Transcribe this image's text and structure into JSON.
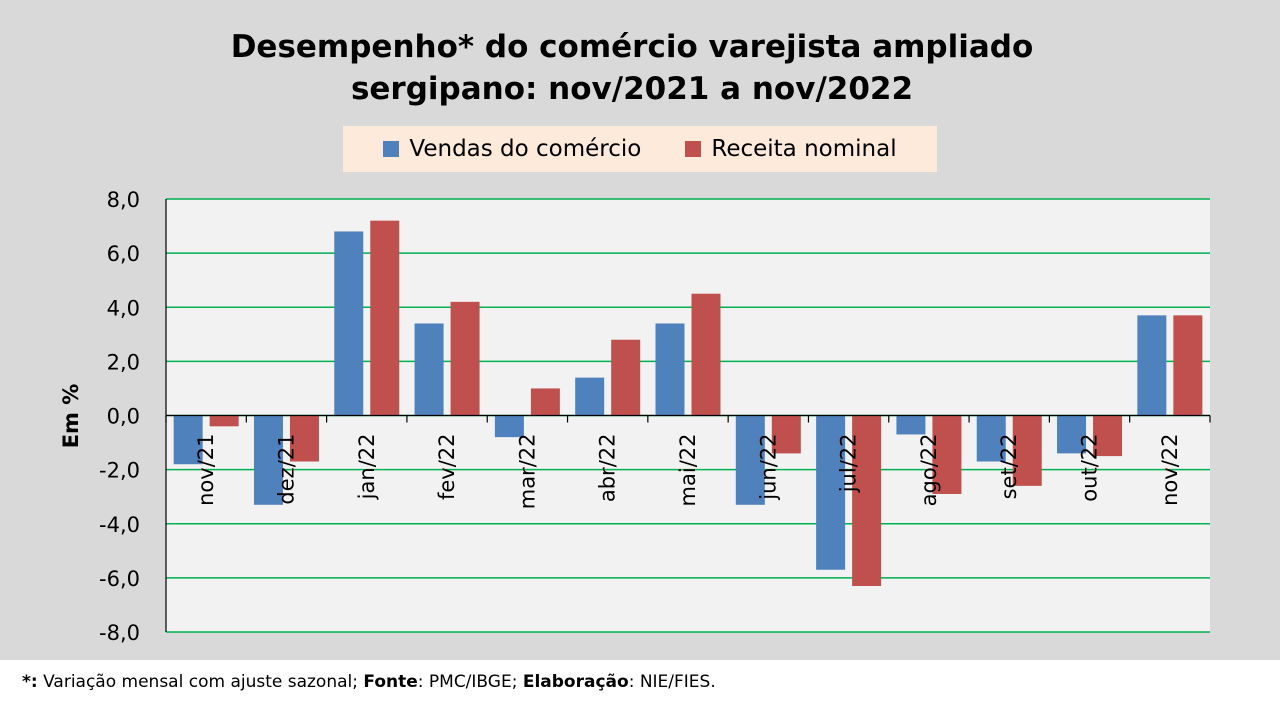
{
  "title": {
    "line1": "Desempenho* do comércio varejista ampliado",
    "line2": "sergipano: nov/2021 a nov/2022"
  },
  "chart_data": {
    "type": "bar",
    "title": "Desempenho* do comércio varejista ampliado sergipano: nov/2021 a nov/2022",
    "xlabel": "",
    "ylabel": "Em %",
    "ylim": [
      -8,
      8
    ],
    "yticks": [
      "8,0",
      "6,0",
      "4,0",
      "2,0",
      "0,0",
      "-2,0",
      "-4,0",
      "-6,0",
      "-8,0"
    ],
    "ytick_values": [
      8,
      6,
      4,
      2,
      0,
      -2,
      -4,
      -6,
      -8
    ],
    "grid": true,
    "legend_position": "top-center",
    "categories": [
      "nov/21",
      "dez/21",
      "jan/22",
      "fev/22",
      "mar/22",
      "abr/22",
      "mai/22",
      "jun/22",
      "jul/22",
      "ago/22",
      "set/22",
      "out/22",
      "nov/22"
    ],
    "series": [
      {
        "name": "Vendas do comércio",
        "color": "#4f81bd",
        "values": [
          -1.8,
          -3.3,
          6.8,
          3.4,
          -0.8,
          1.4,
          3.4,
          -3.3,
          -5.7,
          -0.7,
          -1.7,
          -1.4,
          3.7
        ]
      },
      {
        "name": "Receita nominal",
        "color": "#c0504d",
        "values": [
          -0.4,
          -1.7,
          7.2,
          4.2,
          1.0,
          2.8,
          4.5,
          -1.4,
          -6.3,
          -2.9,
          -2.6,
          -1.5,
          3.7
        ]
      }
    ]
  },
  "colors": {
    "plot_background": "#f2f2f2",
    "gridline": "#00b050",
    "outer_background": "#d9d9d9",
    "legend_background": "#fdeada"
  },
  "footer": {
    "marker": "*:",
    "note": " Variação mensal com ajuste sazonal; ",
    "source_label": "Fonte",
    "source_value": ": PMC/IBGE; ",
    "credit_label": "Elaboração",
    "credit_value": ": NIE/FIES."
  }
}
